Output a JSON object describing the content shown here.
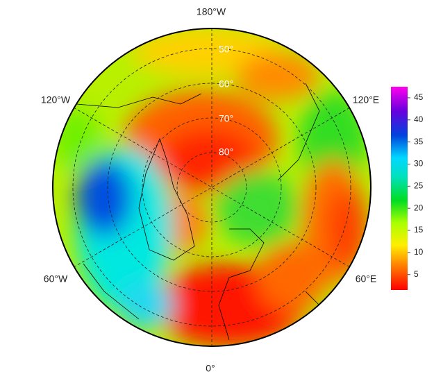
{
  "map": {
    "longitude_labels": [
      "180°W",
      "120°W",
      "120°E",
      "60°W",
      "60°E",
      "0°"
    ],
    "latitude_labels": [
      "50°",
      "60°",
      "70°",
      "80°"
    ]
  },
  "colorbar": {
    "range": [
      1.5,
      47.5
    ],
    "ticks": [
      5,
      10,
      15,
      20,
      25,
      30,
      35,
      40,
      45
    ]
  }
}
